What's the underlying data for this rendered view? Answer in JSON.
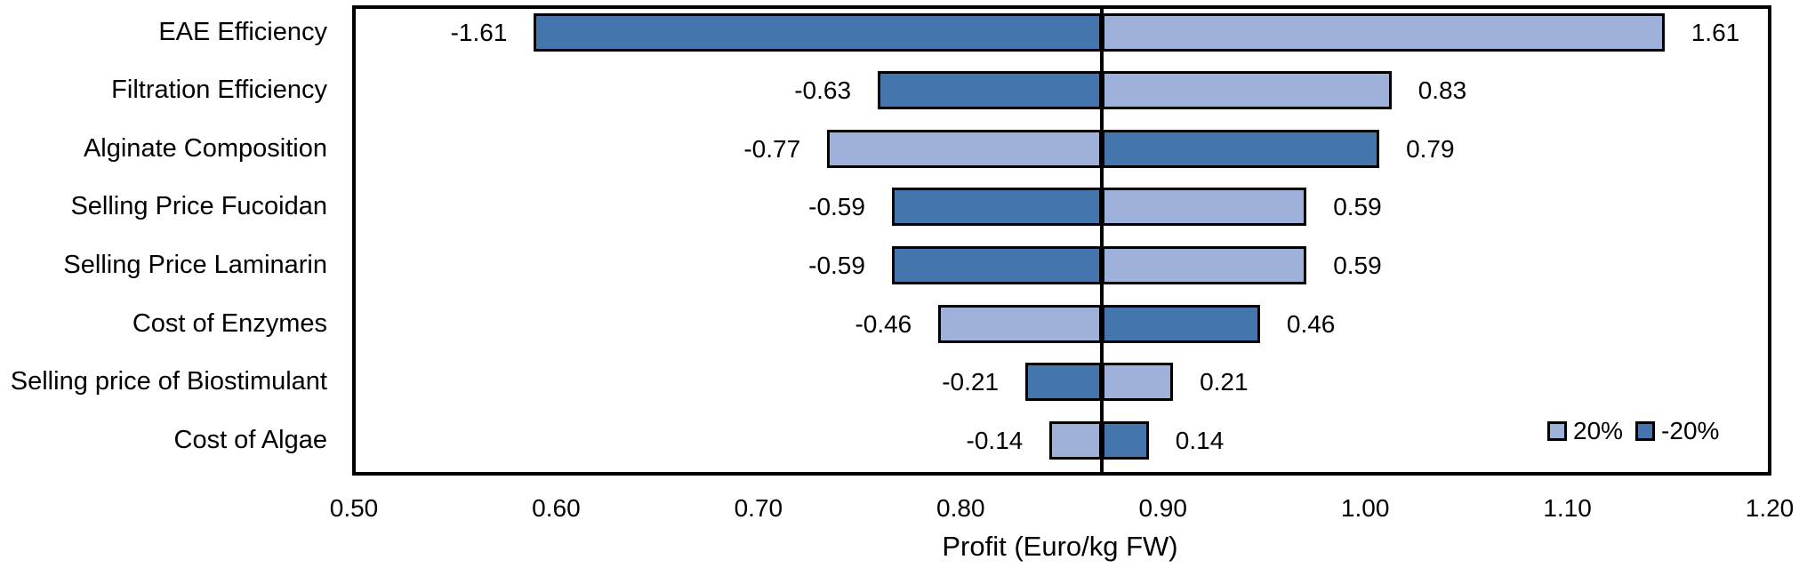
{
  "chart_data": {
    "type": "bar",
    "variant": "tornado-sensitivity",
    "orientation": "horizontal",
    "title": "",
    "xlabel": "Profit (Euro/kg FW)",
    "xlim": [
      0.5,
      1.2
    ],
    "x_ticks": [
      "0.50",
      "0.60",
      "0.70",
      "0.80",
      "0.90",
      "1.00",
      "1.10",
      "1.20"
    ],
    "baseline_profit": 0.87,
    "grid": false,
    "legend_position": "inside-bottom-right",
    "legend": [
      {
        "name": "20%",
        "color": "#9db1da"
      },
      {
        "name": "-20%",
        "color": "#4476ad"
      }
    ],
    "colors": {
      "plus20": "#9db1da",
      "minus20": "#4476ad",
      "bar_border": "#000000",
      "axis": "#000000",
      "text": "#000000"
    },
    "rows": [
      {
        "category": "EAE Efficiency",
        "neg_label": "-1.61",
        "pos_label": "1.61",
        "bar_low": 0.589,
        "bar_high": 1.148,
        "plus20_side": "right"
      },
      {
        "category": "Filtration Efficiency",
        "neg_label": "-0.63",
        "pos_label": "0.83",
        "bar_low": 0.759,
        "bar_high": 1.013,
        "plus20_side": "right"
      },
      {
        "category": "Alginate Composition",
        "neg_label": "-0.77",
        "pos_label": "0.79",
        "bar_low": 0.734,
        "bar_high": 1.007,
        "plus20_side": "left"
      },
      {
        "category": "Selling Price Fucoidan",
        "neg_label": "-0.59",
        "pos_label": "0.59",
        "bar_low": 0.766,
        "bar_high": 0.971,
        "plus20_side": "right"
      },
      {
        "category": "Selling Price Laminarin",
        "neg_label": "-0.59",
        "pos_label": "0.59",
        "bar_low": 0.766,
        "bar_high": 0.971,
        "plus20_side": "right"
      },
      {
        "category": "Cost of Enzymes",
        "neg_label": "-0.46",
        "pos_label": "0.46",
        "bar_low": 0.789,
        "bar_high": 0.948,
        "plus20_side": "left"
      },
      {
        "category": "Selling price of Biostimulant",
        "neg_label": "-0.21",
        "pos_label": "0.21",
        "bar_low": 0.832,
        "bar_high": 0.905,
        "plus20_side": "right"
      },
      {
        "category": "Cost of Algae",
        "neg_label": "-0.14",
        "pos_label": "0.14",
        "bar_low": 0.844,
        "bar_high": 0.893,
        "plus20_side": "left"
      }
    ]
  }
}
